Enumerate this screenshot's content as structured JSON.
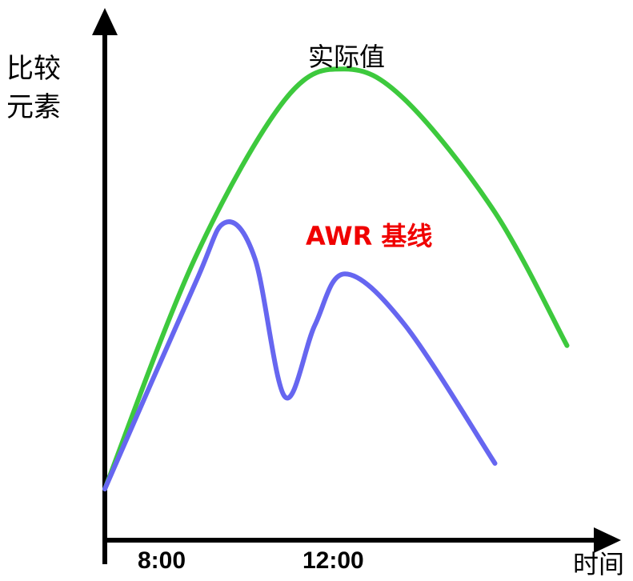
{
  "chart_data": {
    "type": "line",
    "title": "",
    "xlabel": "时间",
    "ylabel_lines": [
      "比较",
      "元素"
    ],
    "x_ticks": [
      "8:00",
      "12:00"
    ],
    "series": [
      {
        "name": "实际值",
        "color": "#3dc93d",
        "points": [
          [
            8.0,
            0.1
          ],
          [
            9.5,
            0.55
          ],
          [
            11.0,
            0.86
          ],
          [
            12.0,
            0.92
          ],
          [
            13.0,
            0.86
          ],
          [
            14.5,
            0.64
          ],
          [
            15.7,
            0.38
          ]
        ]
      },
      {
        "name": "AWR 基线",
        "color": "#6666f0",
        "points": [
          [
            8.0,
            0.1
          ],
          [
            9.5,
            0.5
          ],
          [
            10.0,
            0.62
          ],
          [
            10.5,
            0.55
          ],
          [
            11.0,
            0.28
          ],
          [
            11.5,
            0.42
          ],
          [
            12.0,
            0.52
          ],
          [
            13.0,
            0.42
          ],
          [
            14.5,
            0.15
          ]
        ]
      }
    ],
    "xlim": [
      8,
      16
    ],
    "ylim": [
      0,
      1
    ],
    "grid": false
  }
}
